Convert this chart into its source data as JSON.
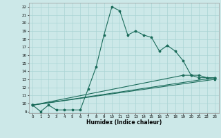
{
  "xlabel": "Humidex (Indice chaleur)",
  "bg_color": "#cce8e8",
  "grid_color": "#aad4d4",
  "line_color": "#1a6b5a",
  "xlim": [
    -0.5,
    23.5
  ],
  "ylim": [
    8.8,
    22.5
  ],
  "yticks": [
    9,
    10,
    11,
    12,
    13,
    14,
    15,
    16,
    17,
    18,
    19,
    20,
    21,
    22
  ],
  "xticks": [
    0,
    1,
    2,
    3,
    4,
    5,
    6,
    7,
    8,
    9,
    10,
    11,
    12,
    13,
    14,
    15,
    16,
    17,
    18,
    19,
    20,
    21,
    22,
    23
  ],
  "line1_x": [
    0,
    1,
    2,
    3,
    4,
    5,
    6,
    7,
    8,
    9,
    10,
    11,
    12,
    13,
    14,
    15,
    16,
    17,
    18,
    19,
    20,
    21,
    22,
    23
  ],
  "line1_y": [
    9.8,
    9.0,
    9.8,
    9.2,
    9.2,
    9.2,
    9.2,
    11.8,
    14.5,
    18.5,
    22.0,
    21.5,
    18.5,
    19.0,
    18.5,
    18.2,
    16.5,
    17.2,
    16.5,
    15.3,
    13.5,
    13.5,
    13.2,
    13.2
  ],
  "line2_x": [
    0,
    23
  ],
  "line2_y": [
    9.8,
    13.2
  ],
  "line3_x": [
    0,
    23
  ],
  "line3_y": [
    9.8,
    13.0
  ],
  "line4_x": [
    0,
    19,
    20,
    21,
    22,
    23
  ],
  "line4_y": [
    9.8,
    13.5,
    13.5,
    13.2,
    13.2,
    13.2
  ]
}
